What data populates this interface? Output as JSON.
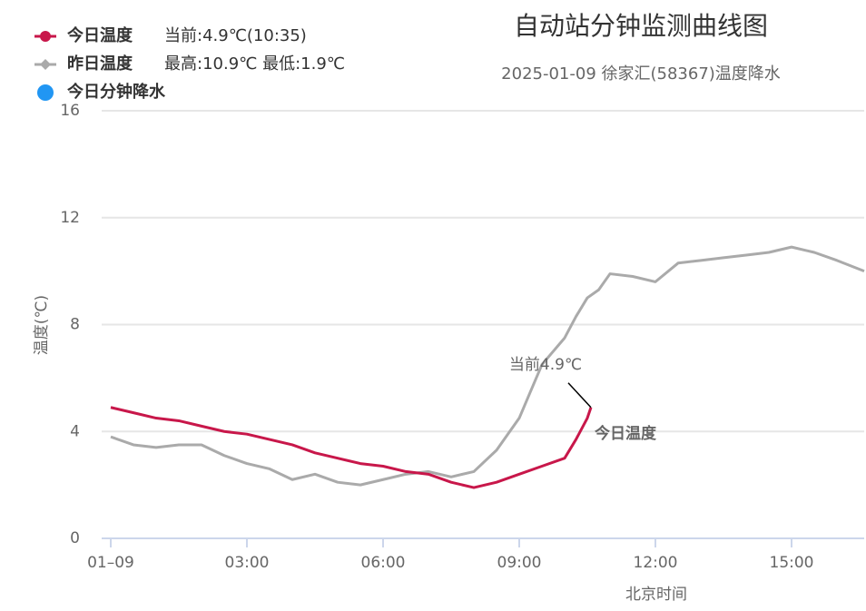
{
  "chart_data": {
    "type": "line",
    "title": "自动站分钟监测曲线图",
    "subtitle": "2025-01-09 徐家汇(58367)温度降水",
    "y_label": "温度(℃)",
    "x_label": "北京时间",
    "annotation": "当前4.9℃",
    "xlim": [
      -0.2,
      16.6
    ],
    "xticks": [
      {
        "value": 0,
        "label": "01–09"
      },
      {
        "value": 3,
        "label": "03:00"
      },
      {
        "value": 6,
        "label": "06:00"
      },
      {
        "value": 9,
        "label": "09:00"
      },
      {
        "value": 12,
        "label": "12:00"
      },
      {
        "value": 15,
        "label": "15:00"
      }
    ],
    "ylim": [
      0,
      16
    ],
    "yticks": [
      0,
      4,
      8,
      12,
      16
    ],
    "grid": true,
    "series": [
      {
        "name": "今日温度",
        "note": "当前:4.9℃(10:35)",
        "color": "#c8174a",
        "x": [
          0,
          0.5,
          1,
          1.5,
          2,
          2.5,
          3,
          3.5,
          4,
          4.5,
          5,
          5.5,
          6,
          6.5,
          7,
          7.5,
          8,
          8.5,
          9,
          9.5,
          10,
          10.25,
          10.5,
          10.58
        ],
        "values": [
          4.9,
          4.7,
          4.5,
          4.4,
          4.2,
          4.0,
          3.9,
          3.7,
          3.5,
          3.2,
          3.0,
          2.8,
          2.7,
          2.5,
          2.4,
          2.1,
          1.9,
          2.1,
          2.4,
          2.7,
          3.0,
          3.7,
          4.5,
          4.9
        ]
      },
      {
        "name": "昨日温度",
        "note": "最高:10.9℃ 最低:1.9℃",
        "color": "#aaaaaa",
        "x": [
          0,
          0.5,
          1,
          1.5,
          2,
          2.5,
          3,
          3.5,
          4,
          4.5,
          5,
          5.5,
          6,
          6.5,
          7,
          7.5,
          8,
          8.5,
          9,
          9.25,
          9.5,
          9.75,
          10,
          10.25,
          10.5,
          10.75,
          11,
          11.5,
          12,
          12.5,
          13,
          13.5,
          14,
          14.5,
          15,
          15.5,
          16,
          16.6
        ],
        "values": [
          3.8,
          3.5,
          3.4,
          3.5,
          3.5,
          3.1,
          2.8,
          2.6,
          2.2,
          2.4,
          2.1,
          2.0,
          2.2,
          2.4,
          2.5,
          2.3,
          2.5,
          3.3,
          4.5,
          5.5,
          6.5,
          7.0,
          7.5,
          8.3,
          9.0,
          9.3,
          9.9,
          9.8,
          9.6,
          10.3,
          10.4,
          10.5,
          10.6,
          10.7,
          10.9,
          10.7,
          10.4,
          10.0
        ]
      },
      {
        "name": "今日分钟降水",
        "color": "#2196f3",
        "x": [],
        "values": []
      }
    ]
  }
}
